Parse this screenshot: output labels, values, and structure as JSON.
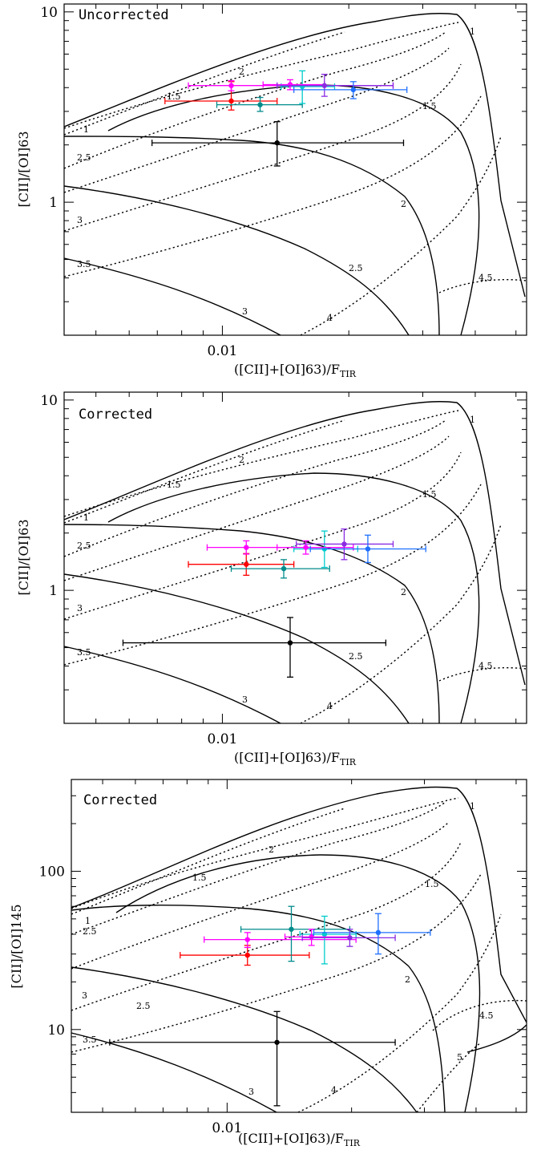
{
  "chart_data": [
    {
      "type": "scatter",
      "title": "",
      "panel_label": "Uncorrected",
      "xlabel_pre": "([CII]+[OI]63)/F",
      "xlabel_sub": "TIR",
      "ylabel": "[CII]/[OI]63",
      "xscale": "log",
      "yscale": "log",
      "xlim": [
        0.0042,
        0.053
      ],
      "ylim": [
        0.2,
        11
      ],
      "xticks": [
        {
          "value": 0.01,
          "label": "0.01"
        }
      ],
      "yticks": [
        {
          "value": 1,
          "label": "1"
        },
        {
          "value": 10,
          "label": "10"
        }
      ],
      "series": [
        {
          "color": "#000000",
          "x": 0.0135,
          "y": 2.05,
          "xerr": [
            0.0068,
            0.027
          ],
          "yerr": [
            1.55,
            2.65
          ]
        },
        {
          "color": "#ff0000",
          "x": 0.0105,
          "y": 3.4,
          "xerr": [
            0.0073,
            0.0135
          ],
          "yerr": [
            3.05,
            4.3
          ]
        },
        {
          "color": "#ff00ff",
          "x": 0.0105,
          "y": 4.1,
          "xerr": [
            0.0083,
            0.0255
          ],
          "yerr": [
            3.85,
            4.35
          ]
        },
        {
          "color": "#008b8b",
          "x": 0.0123,
          "y": 3.25,
          "xerr": [
            0.0097,
            0.0155
          ],
          "yerr": [
            3.0,
            3.55
          ]
        },
        {
          "color": "#00cccc",
          "x": 0.0155,
          "y": 4.05,
          "xerr": [
            0.0138,
            0.0185
          ],
          "yerr": [
            3.3,
            4.9
          ]
        },
        {
          "color": "#ff00ff",
          "x": 0.0145,
          "y": 4.15,
          "xerr": [
            0.0125,
            0.0175
          ],
          "yerr": [
            3.9,
            4.4
          ]
        },
        {
          "color": "#8a2be2",
          "x": 0.0175,
          "y": 4.1,
          "xerr": [
            0.0135,
            0.0255
          ],
          "yerr": [
            3.6,
            4.7
          ]
        },
        {
          "color": "#1e6fff",
          "x": 0.0205,
          "y": 3.9,
          "xerr": [
            0.0148,
            0.0275
          ],
          "yerr": [
            3.5,
            4.3
          ]
        }
      ]
    },
    {
      "type": "scatter",
      "title": "",
      "panel_label": "Corrected",
      "xlabel_pre": "([CII]+[OI]63)/F",
      "xlabel_sub": "TIR",
      "ylabel": "[CII]/[OI]63",
      "xscale": "log",
      "yscale": "log",
      "xlim": [
        0.0042,
        0.053
      ],
      "ylim": [
        0.2,
        11
      ],
      "xticks": [
        {
          "value": 0.01,
          "label": "0.01"
        }
      ],
      "yticks": [
        {
          "value": 1,
          "label": "1"
        },
        {
          "value": 10,
          "label": "10"
        }
      ],
      "series": [
        {
          "color": "#000000",
          "x": 0.0145,
          "y": 0.53,
          "xerr": [
            0.0058,
            0.0245
          ],
          "yerr": [
            0.35,
            0.72
          ]
        },
        {
          "color": "#ff0000",
          "x": 0.0114,
          "y": 1.37,
          "xerr": [
            0.0083,
            0.0148
          ],
          "yerr": [
            1.2,
            1.56
          ]
        },
        {
          "color": "#ff00ff",
          "x": 0.0114,
          "y": 1.68,
          "xerr": [
            0.0092,
            0.0205
          ],
          "yerr": [
            1.55,
            1.82
          ]
        },
        {
          "color": "#008b8b",
          "x": 0.014,
          "y": 1.3,
          "xerr": [
            0.0105,
            0.018
          ],
          "yerr": [
            1.16,
            1.45
          ]
        },
        {
          "color": "#00cccc",
          "x": 0.0175,
          "y": 1.65,
          "xerr": [
            0.0148,
            0.021
          ],
          "yerr": [
            1.32,
            2.05
          ]
        },
        {
          "color": "#ff00ff",
          "x": 0.0158,
          "y": 1.68,
          "xerr": [
            0.0135,
            0.0195
          ],
          "yerr": [
            1.55,
            1.82
          ]
        },
        {
          "color": "#8a2be2",
          "x": 0.0195,
          "y": 1.75,
          "xerr": [
            0.015,
            0.0255
          ],
          "yerr": [
            1.45,
            2.1
          ]
        },
        {
          "color": "#1e6fff",
          "x": 0.0222,
          "y": 1.65,
          "xerr": [
            0.0162,
            0.0305
          ],
          "yerr": [
            1.4,
            1.95
          ]
        }
      ]
    },
    {
      "type": "scatter",
      "title": "",
      "panel_label": "Corrected",
      "xlabel_pre": "([CII]+[OI]63)/F",
      "xlabel_sub": "TIR",
      "ylabel": "[CII]/[OI]145",
      "xscale": "log",
      "yscale": "log",
      "xlim": [
        0.0042,
        0.053
      ],
      "ylim": [
        3.0,
        380
      ],
      "xticks": [
        {
          "value": 0.01,
          "label": "0.01"
        }
      ],
      "yticks": [
        {
          "value": 10,
          "label": "10"
        },
        {
          "value": 100,
          "label": "100"
        }
      ],
      "series": [
        {
          "color": "#000000",
          "x": 0.0132,
          "y": 8.3,
          "xerr": [
            0.0052,
            0.0255
          ],
          "yerr": [
            3.3,
            13.0
          ]
        },
        {
          "color": "#ff0000",
          "x": 0.0112,
          "y": 29.5,
          "xerr": [
            0.0077,
            0.0158
          ],
          "yerr": [
            25.5,
            34.0
          ]
        },
        {
          "color": "#ff00ff",
          "x": 0.0112,
          "y": 37.0,
          "xerr": [
            0.0088,
            0.0205
          ],
          "yerr": [
            33.0,
            41.0
          ]
        },
        {
          "color": "#008b8b",
          "x": 0.0143,
          "y": 43.0,
          "xerr": [
            0.0108,
            0.0198
          ],
          "yerr": [
            27.0,
            60.0
          ]
        },
        {
          "color": "#00cccc",
          "x": 0.0172,
          "y": 40.0,
          "xerr": [
            0.015,
            0.0205
          ],
          "yerr": [
            26.0,
            52.0
          ]
        },
        {
          "color": "#ff00ff",
          "x": 0.016,
          "y": 38.5,
          "xerr": [
            0.0138,
            0.0198
          ],
          "yerr": [
            34.0,
            43.0
          ]
        },
        {
          "color": "#8a2be2",
          "x": 0.0198,
          "y": 38.0,
          "xerr": [
            0.0152,
            0.0255
          ],
          "yerr": [
            33.5,
            43.0
          ]
        },
        {
          "color": "#1e6fff",
          "x": 0.0232,
          "y": 41.0,
          "xerr": [
            0.0162,
            0.031
          ],
          "yerr": [
            30.0,
            54.0
          ]
        }
      ]
    }
  ],
  "contours": [
    {
      "solid_labels": [
        "1",
        "1.5",
        "2",
        "2.5",
        "3"
      ],
      "dotted_labels": [
        "1",
        "1.5",
        "2",
        "2.5",
        "3",
        "3.5",
        "4",
        "4.5"
      ]
    },
    {
      "solid_labels": [
        "1",
        "1.5",
        "2",
        "2.5",
        "3"
      ],
      "dotted_labels": [
        "1",
        "1.5",
        "2",
        "2.5",
        "3",
        "3.5",
        "4",
        "4.5"
      ]
    },
    {
      "solid_labels": [
        "1",
        "1.5",
        "2",
        "2.5",
        "3"
      ],
      "dotted_labels": [
        "1",
        "1.5",
        "2",
        "2.5",
        "3",
        "3.5",
        "4",
        "4.5",
        "5"
      ]
    }
  ]
}
